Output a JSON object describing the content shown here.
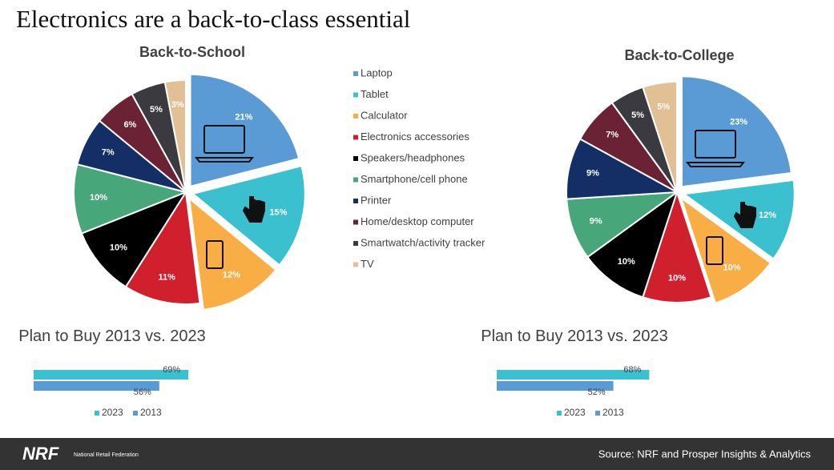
{
  "title": "Electronics are a back-to-class essential",
  "chart_data": [
    {
      "type": "pie",
      "title": "Back-to-School",
      "categories": [
        "Laptop",
        "Tablet",
        "Calculator",
        "Electronics accessories",
        "Speakers/headphones",
        "Smartphone/cell phone",
        "Printer",
        "Home/desktop computer",
        "Smartwatch/activity tracker",
        "TV"
      ],
      "colors": [
        "#5b9bd5",
        "#3bc0cf",
        "#f9ad45",
        "#d0202e",
        "#000000",
        "#48a77a",
        "#142e66",
        "#6b2234",
        "#3a3a40",
        "#e1c096"
      ],
      "values": [
        21,
        15,
        12,
        11,
        10,
        10,
        7,
        6,
        5,
        3
      ],
      "value_labels": [
        "21%",
        "15%",
        "12%",
        "11%",
        "10%",
        "10%",
        "7%",
        "6%",
        "5%",
        "3%"
      ]
    },
    {
      "type": "pie",
      "title": "Back-to-College",
      "values": [
        23,
        12,
        10,
        10,
        10,
        9,
        9,
        7,
        5,
        5
      ],
      "value_labels": [
        "23%",
        "12%",
        "10%",
        "10%",
        "10%",
        "9%",
        "9%",
        "7%",
        "5%",
        "5%"
      ]
    },
    {
      "type": "hbar",
      "title": "Plan to Buy 2013 vs. 2023",
      "categories": [
        null
      ],
      "xlim": [
        0,
        100
      ],
      "series": [
        {
          "name": "2023",
          "color": "#3bc0cf",
          "values": [
            69
          ],
          "value_labels": [
            "69%"
          ]
        },
        {
          "name": "2013",
          "color": "#5b9bd5",
          "values": [
            56
          ],
          "value_labels": [
            "56%"
          ]
        }
      ]
    },
    {
      "type": "hbar",
      "title": "Plan to Buy 2013 vs. 2023",
      "categories": [
        null
      ],
      "xlim": [
        0,
        100
      ],
      "series": [
        {
          "name": "2023",
          "color": "#3bc0cf",
          "values": [
            68
          ],
          "value_labels": [
            "68%"
          ]
        },
        {
          "name": "2013",
          "color": "#5b9bd5",
          "values": [
            52
          ],
          "value_labels": [
            "52%"
          ]
        }
      ]
    }
  ],
  "footer": {
    "logo": "NRF",
    "logo_text": "National Retail Federation",
    "source": "Source: NRF and Prosper Insights & Analytics"
  }
}
